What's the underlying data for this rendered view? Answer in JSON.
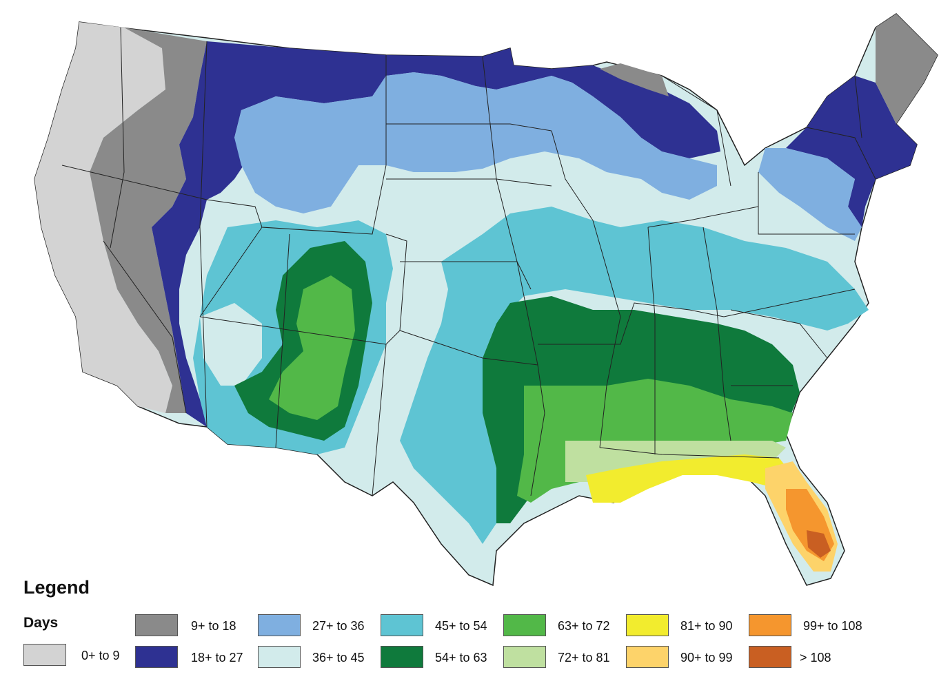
{
  "legend": {
    "title": "Legend",
    "subtitle": "Days",
    "items": [
      {
        "label": "0+ to 9",
        "color": "#d3d3d3"
      },
      {
        "label": "9+ to 18",
        "color": "#8a8a8a"
      },
      {
        "label": "18+ to 27",
        "color": "#2e3192"
      },
      {
        "label": "27+ to 36",
        "color": "#7fafe0"
      },
      {
        "label": "36+ to 45",
        "color": "#d2ebeb"
      },
      {
        "label": "45+ to 54",
        "color": "#5ec4d3"
      },
      {
        "label": "54+ to 63",
        "color": "#0f7a3c"
      },
      {
        "label": "63+ to 72",
        "color": "#52b848"
      },
      {
        "label": "72+ to 81",
        "color": "#bfe0a0"
      },
      {
        "label": "81+ to 90",
        "color": "#f2ec2e"
      },
      {
        "label": "90+ to 99",
        "color": "#fdd36a"
      },
      {
        "label": "99+ to 108",
        "color": "#f5962e"
      },
      {
        "label": "> 108",
        "color": "#c95f22"
      }
    ]
  }
}
